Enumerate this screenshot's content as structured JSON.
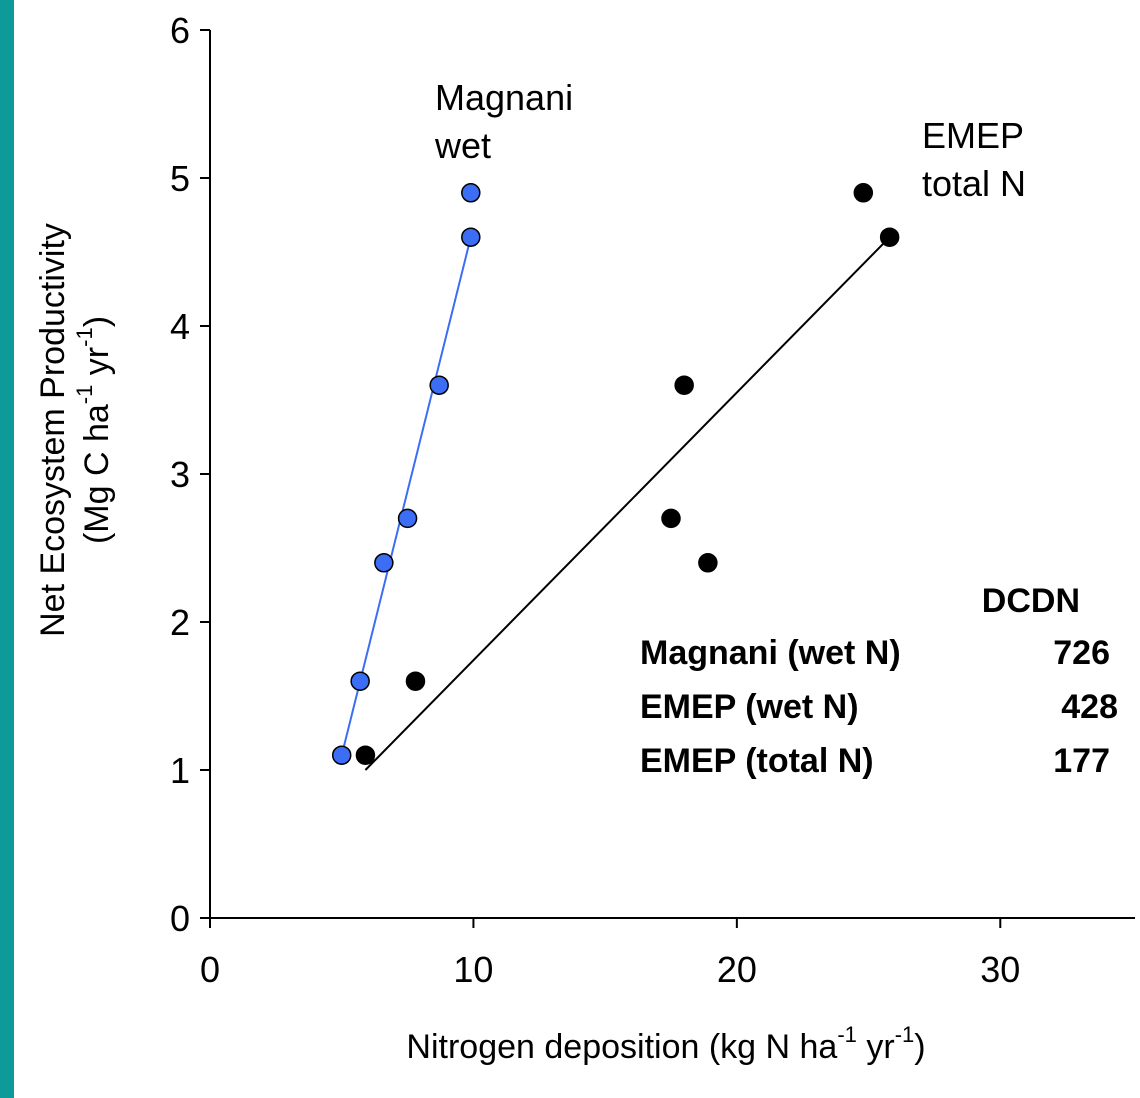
{
  "chart_data": {
    "type": "scatter",
    "xlabel": "Nitrogen deposition (kg N ha-1 yr-1)",
    "xlabel_parts": {
      "main": "Nitrogen deposition (kg N ha",
      "sup1": "-1",
      "mid": " yr",
      "sup2": "-1",
      "end": ")"
    },
    "ylabel_line1": "Net Ecosystem Productivity",
    "ylabel_line2": {
      "main": "(Mg C ha",
      "sup1": "-1",
      "mid": " yr",
      "sup2": "-1",
      "end": ")"
    },
    "xlim": [
      0,
      35
    ],
    "ylim": [
      0,
      6
    ],
    "xticks": [
      "0",
      "10",
      "20",
      "30"
    ],
    "xtick_values": [
      0,
      10,
      20,
      30
    ],
    "yticks": [
      "0",
      "1",
      "2",
      "3",
      "4",
      "5",
      "6"
    ],
    "ytick_values": [
      0,
      1,
      2,
      3,
      4,
      5,
      6
    ],
    "grid": false,
    "series": [
      {
        "name": "Magnani wet",
        "label_lines": [
          "Magnani",
          "wet"
        ],
        "color": "#3b6ef5",
        "x": [
          5.0,
          5.7,
          6.6,
          7.5,
          8.7,
          9.9,
          9.9
        ],
        "y": [
          1.1,
          1.6,
          2.4,
          2.7,
          3.6,
          4.6,
          4.9
        ],
        "fit": {
          "x": [
            5.0,
            9.9
          ],
          "y": [
            1.1,
            4.6
          ]
        }
      },
      {
        "name": "EMEP total N",
        "label_lines": [
          "EMEP",
          "total N"
        ],
        "color": "#000000",
        "x": [
          5.9,
          7.8,
          17.5,
          18.0,
          18.9,
          24.8,
          25.8
        ],
        "y": [
          1.1,
          1.6,
          2.7,
          3.6,
          2.4,
          4.9,
          4.6
        ],
        "fit": {
          "x": [
            5.9,
            25.8
          ],
          "y": [
            1.0,
            4.6
          ]
        }
      }
    ],
    "table": {
      "header": "DCDN",
      "rows": [
        {
          "label": "Magnani (wet N)",
          "value": "726"
        },
        {
          "label": "EMEP (wet N)",
          "value": "428"
        },
        {
          "label": "EMEP (total N)",
          "value": "177"
        }
      ]
    }
  }
}
